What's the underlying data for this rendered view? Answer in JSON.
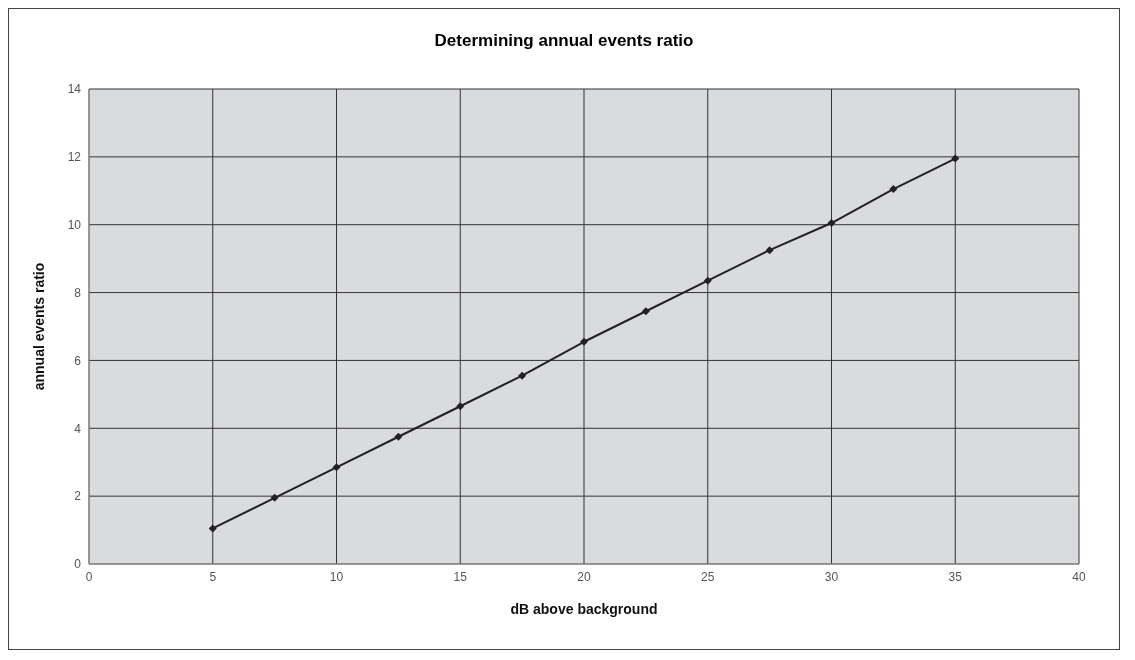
{
  "chart_data": {
    "type": "line",
    "title": "Determining annual events ratio",
    "xlabel": "dB above background",
    "ylabel": "annual events ratio",
    "x": [
      5,
      7.5,
      10,
      12.5,
      15,
      17.5,
      20,
      22.5,
      25,
      27.5,
      30,
      32.5,
      35
    ],
    "series": [
      {
        "color": "#222222",
        "values": [
          1.05,
          1.95,
          2.85,
          3.75,
          4.65,
          5.55,
          6.55,
          7.45,
          8.35,
          9.25,
          10.05,
          11.05,
          11.95
        ]
      }
    ],
    "xlim": [
      0,
      40
    ],
    "xticks": [
      0,
      5,
      10,
      15,
      20,
      25,
      30,
      35,
      40
    ],
    "ylim": [
      0,
      14
    ],
    "yticks": [
      0,
      2,
      4,
      6,
      8,
      10,
      12,
      14
    ],
    "grid": true,
    "marker": "diamond",
    "line_style": "solid"
  }
}
